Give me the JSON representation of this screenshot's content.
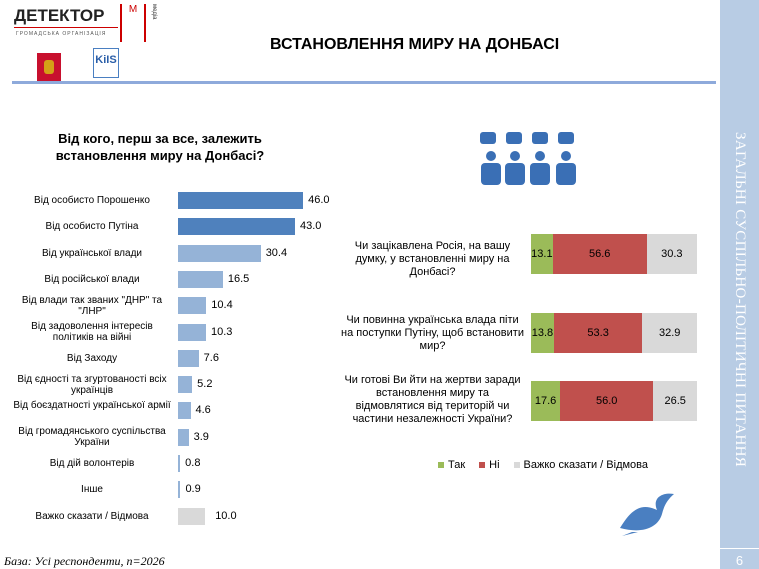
{
  "header": {
    "title": "ВСТАНОВЛЕННЯ МИРУ НА ДОНБАСІ",
    "logo_text": "ДЕТЕКТОР",
    "logo_sub": "ГРОМАДСЬКА ОРГАНІЗАЦІЯ",
    "logo_m": "М",
    "logo_media": "медіа",
    "kiis_logo": "KiIS"
  },
  "sidebar": {
    "section": "ЗАГАЛЬНІ СУСПІЛЬНО-ПОЛІТИЧНІ ПИТАННЯ",
    "page": "6"
  },
  "footer": {
    "base": "База: Усі респонденти, n=2026"
  },
  "colors": {
    "dark_bar": "#4f81bd",
    "light_bar": "#95b3d7",
    "grey_bar": "#d9d9d9",
    "yes": "#9bbb59",
    "no": "#c0504d",
    "hard": "#d9d9d9"
  },
  "chart_data": [
    {
      "type": "bar",
      "orientation": "horizontal",
      "title": "Від кого, перш за все, залежить встановлення миру на Донбасі?",
      "categories": [
        "Від особисто Порошенко",
        "Від особисто Путіна",
        "Від української влади",
        "Від російської влади",
        "Від влади так званих \"ДНР\" та \"ЛНР\"",
        "Від задоволення інтересів політиків на війні",
        "Від Заходу",
        "Від єдності та згуртованості всіх українців",
        "Від боєздатності української армії",
        "Від громадянського суспільства України",
        "Від дій волонтерів",
        "Інше",
        "Важко сказати / Відмова"
      ],
      "values": [
        46.0,
        43.0,
        30.4,
        16.5,
        10.4,
        10.3,
        7.6,
        5.2,
        4.6,
        3.9,
        0.8,
        0.9,
        10.0
      ],
      "labels": [
        "46.0",
        "43.0",
        "30.4",
        "16.5",
        "10.4",
        "10.3",
        "7.6",
        "5.2",
        "4.6",
        "3.9",
        "0.8",
        "0.9",
        "10.0"
      ]
    },
    {
      "type": "bar",
      "orientation": "horizontal",
      "stacked": true,
      "categories": [
        "Чи зацікавлена Росія, на вашу думку, у встановленні миру на Донбасі?",
        "Чи повинна українська влада піти на поступки Путіну, щоб встановити мир?",
        "Чи готові Ви йти на жертви заради встановлення миру та відмовлятися від територій чи частини незалежності України?"
      ],
      "series": [
        {
          "name": "Так",
          "values": [
            13.1,
            13.8,
            17.6
          ],
          "labels": [
            "13.1",
            "13.8",
            "17.6"
          ]
        },
        {
          "name": "Ні",
          "values": [
            56.6,
            53.3,
            56.0
          ],
          "labels": [
            "56.6",
            "53.3",
            "56.0"
          ]
        },
        {
          "name": "Важко сказати / Відмова",
          "values": [
            30.3,
            32.9,
            26.5
          ],
          "labels": [
            "30.3",
            "32.9",
            "26.5"
          ]
        }
      ],
      "legend": "bottom"
    }
  ]
}
